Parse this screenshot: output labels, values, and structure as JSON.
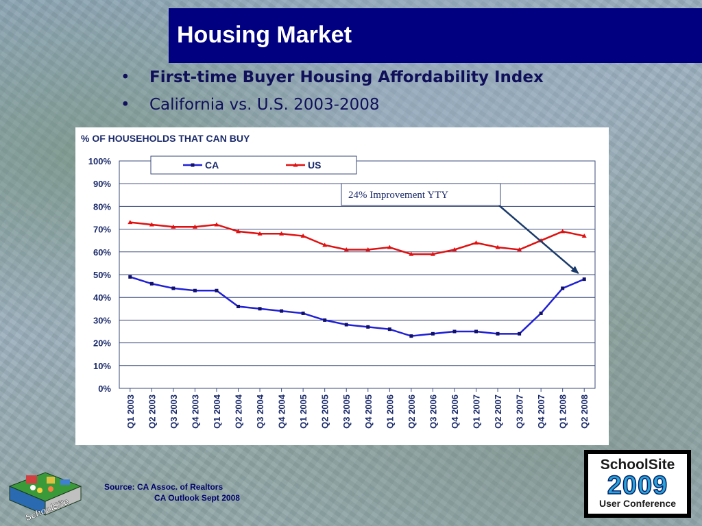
{
  "title": "Housing Market",
  "bullets": [
    "First-time Buyer Housing Affordability Index",
    "California vs. U.S. 2003-2008"
  ],
  "bullet_glyph": "•",
  "source": {
    "line1": "Source:  CA Assoc. of Realtors",
    "line2": "CA Outlook Sept 2008"
  },
  "badge": {
    "name": "SchoolSite",
    "year": "2009",
    "subtitle": "User Conference"
  },
  "logo": {
    "text": "SchoolSite",
    "icon": "schoolsite-isometric-logo-icon"
  },
  "colors": {
    "title_bar": "#000080",
    "ca_series": "#1f1fd6",
    "us_series": "#e01010",
    "axis_text": "#1a2a6a",
    "arrow": "#1a3a6a"
  },
  "chart_data": {
    "type": "line",
    "title": "% OF HOUSEHOLDS THAT CAN BUY",
    "categories": [
      "Q1 2003",
      "Q2 2003",
      "Q3 2003",
      "Q4 2003",
      "Q1 2004",
      "Q2 2004",
      "Q3 2004",
      "Q4 2004",
      "Q1 2005",
      "Q2 2005",
      "Q3 2005",
      "Q4 2005",
      "Q1 2006",
      "Q2 2006",
      "Q3 2006",
      "Q4 2006",
      "Q1 2007",
      "Q2 2007",
      "Q3 2007",
      "Q4 2007",
      "Q1 2008",
      "Q2 2008"
    ],
    "series": [
      {
        "name": "CA",
        "color": "#1f1fd6",
        "marker": "square",
        "values": [
          49,
          46,
          44,
          43,
          43,
          36,
          35,
          34,
          33,
          30,
          28,
          27,
          26,
          23,
          24,
          25,
          25,
          24,
          24,
          33,
          44,
          48
        ]
      },
      {
        "name": "US",
        "color": "#e01010",
        "marker": "triangle",
        "values": [
          73,
          72,
          71,
          71,
          72,
          69,
          68,
          68,
          67,
          63,
          61,
          61,
          62,
          59,
          59,
          61,
          64,
          62,
          61,
          65,
          69,
          67
        ]
      }
    ],
    "ylim": [
      0,
      100
    ],
    "yticks": [
      "0%",
      "10%",
      "20%",
      "30%",
      "40%",
      "50%",
      "60%",
      "70%",
      "80%",
      "90%",
      "100%"
    ],
    "xlabel": "",
    "ylabel": "",
    "grid": "horizontal",
    "legend": "top",
    "annotation": {
      "text": "24% Improvement YTY",
      "points_to": "Q2 2008"
    }
  }
}
